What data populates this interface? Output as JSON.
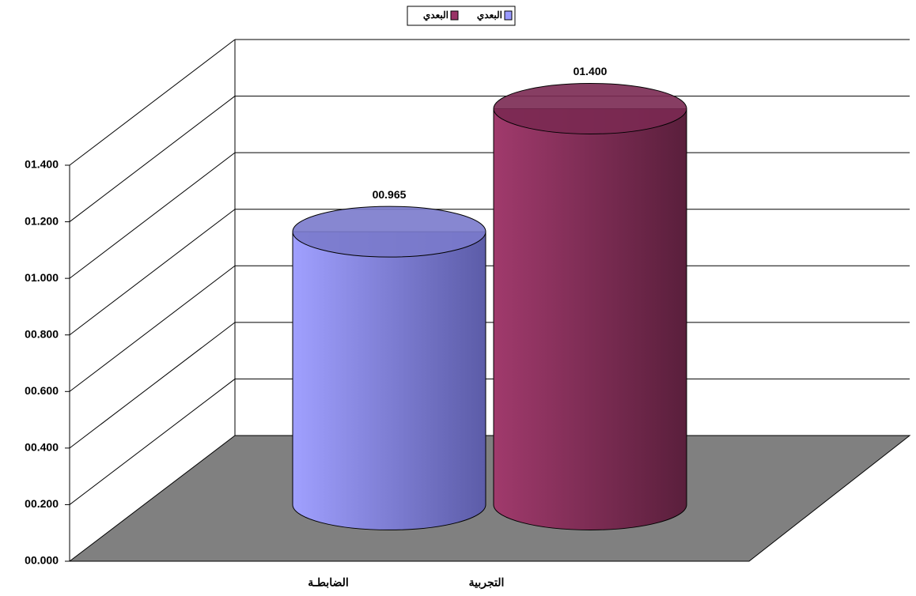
{
  "chart_data": {
    "type": "bar3d",
    "categories": [
      "الضابطـة",
      "التجربية"
    ],
    "series": [
      {
        "name": "البعدي",
        "color": "#9999ff",
        "values": [
          0.965,
          null
        ],
        "value_labels": [
          "00.965",
          null
        ]
      },
      {
        "name": "البعدي",
        "color": "#993366",
        "values": [
          null,
          1.4
        ],
        "value_labels": [
          null,
          "01.400"
        ]
      }
    ],
    "ylim": [
      0,
      1.4
    ],
    "yticks": [
      {
        "value": 0,
        "label": "00.000"
      },
      {
        "value": 0.2,
        "label": "00.200"
      },
      {
        "value": 0.4,
        "label": "00.400"
      },
      {
        "value": 0.6,
        "label": "00.600"
      },
      {
        "value": 0.8,
        "label": "00.800"
      },
      {
        "value": 1.0,
        "label": "01.000"
      },
      {
        "value": 1.2,
        "label": "01.200"
      },
      {
        "value": 1.4,
        "label": "01.400"
      }
    ],
    "grid": true
  }
}
